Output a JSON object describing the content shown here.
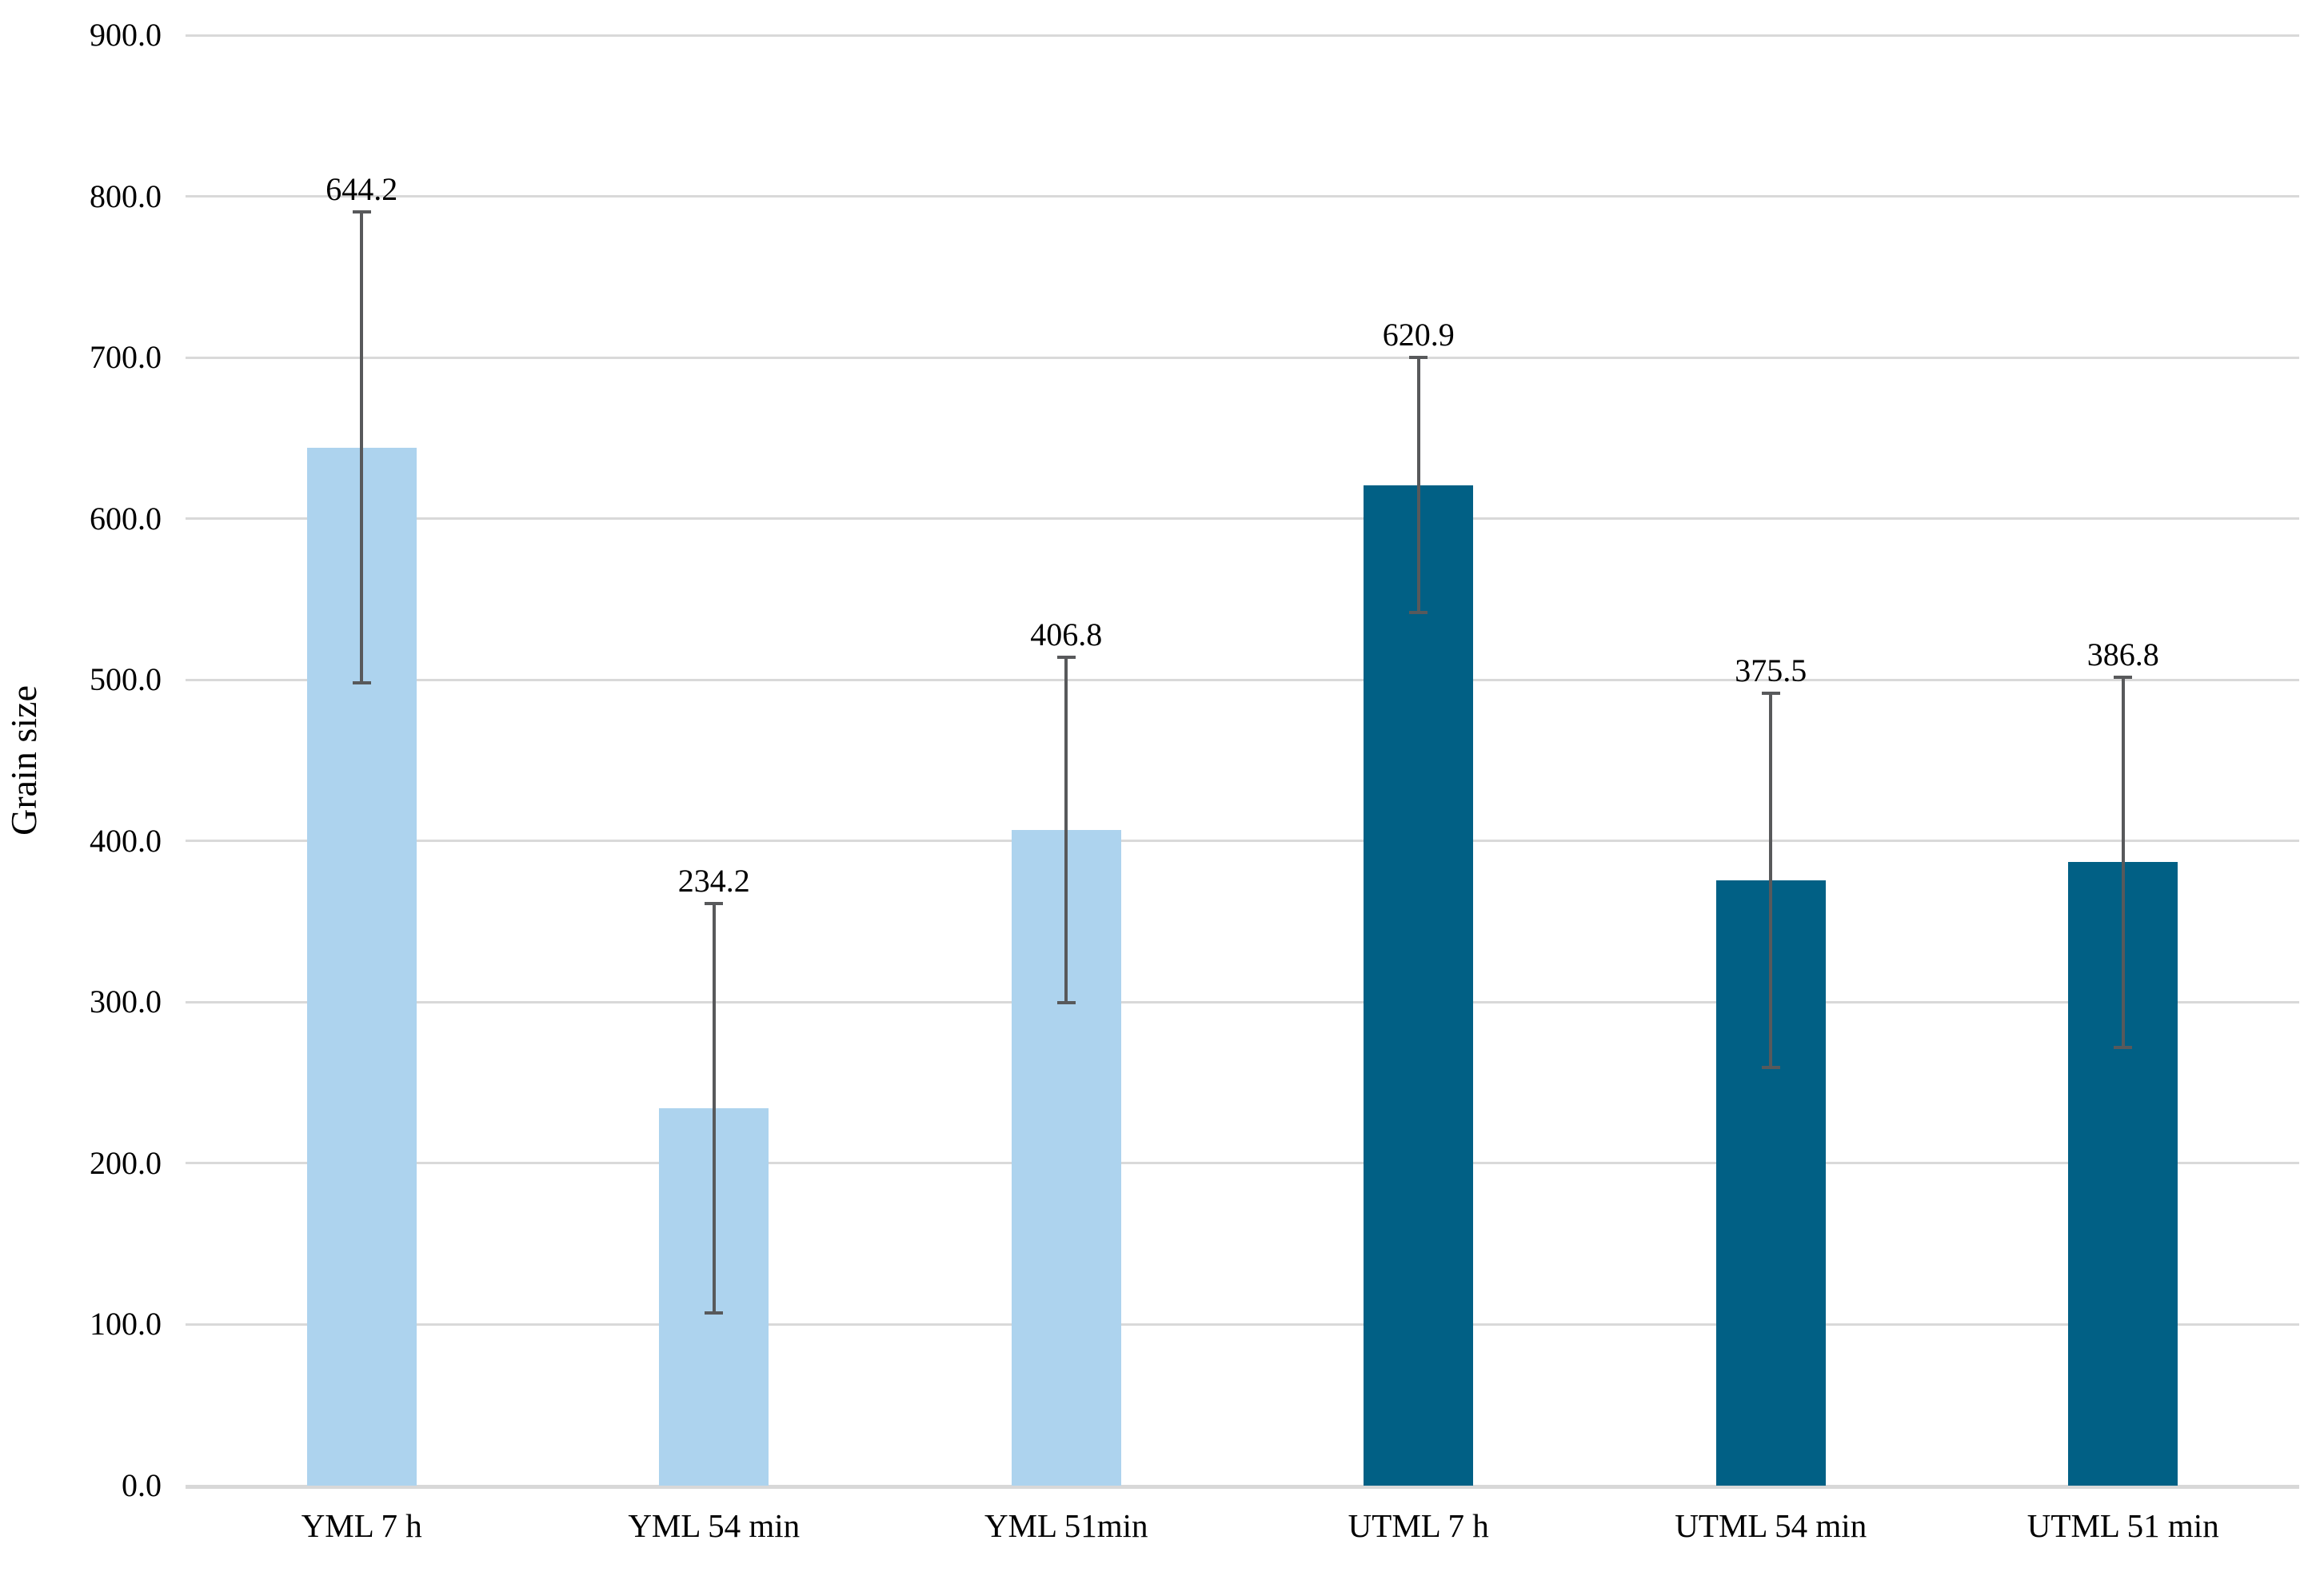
{
  "y_axis": {
    "title": "Grain size",
    "min": 0,
    "max": 900,
    "step": 100,
    "tick_labels": [
      "0.0",
      "100.0",
      "200.0",
      "300.0",
      "400.0",
      "500.0",
      "600.0",
      "700.0",
      "800.0",
      "900.0"
    ]
  },
  "chart_data": {
    "type": "bar",
    "title": "",
    "xlabel": "",
    "ylabel": "Grain size",
    "ylim": [
      0,
      900
    ],
    "grid": true,
    "legend": false,
    "categories": [
      "YML 7 h",
      "YML 54 min",
      "YML 51min",
      "UTML 7 h",
      "UTML 54 min",
      "UTML 51 min"
    ],
    "values": [
      644.2,
      234.2,
      406.8,
      620.9,
      375.5,
      386.8
    ],
    "data_labels": [
      "644.2",
      "234.2",
      "406.8",
      "620.9",
      "375.5",
      "386.8"
    ],
    "error_plus": [
      146,
      127,
      107,
      79,
      116,
      115
    ],
    "error_minus": [
      146,
      127,
      107,
      79,
      116,
      115
    ],
    "bar_colors": [
      "#add3ee",
      "#add3ee",
      "#add3ee",
      "#016085",
      "#016085",
      "#016085"
    ]
  },
  "colors": {
    "light_bar": "#add3ee",
    "dark_bar": "#016085",
    "gridline": "#d9d9d9",
    "axis_line": "#d8d8d8",
    "error_bar": "#58595b",
    "text": "#000000"
  }
}
